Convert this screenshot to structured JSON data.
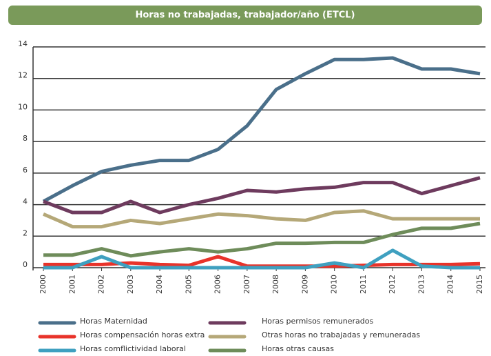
{
  "chart_data": {
    "type": "line",
    "title": "Horas no trabajadas, trabajador/año (ETCL)",
    "categories": [
      "2000",
      "2001",
      "2002",
      "2003",
      "2004",
      "2005",
      "2006",
      "2007",
      "2008",
      "2009",
      "2010",
      "2011",
      "2012",
      "2013",
      "2014",
      "2015"
    ],
    "ylim": [
      0,
      14
    ],
    "yticks": [
      0,
      2,
      4,
      6,
      8,
      10,
      12,
      14
    ],
    "grid": true,
    "legend": "bottom",
    "series": [
      {
        "name": "Horas Maternidad",
        "color": "#4a6f8a",
        "values": [
          4.2,
          5.2,
          6.1,
          6.5,
          6.8,
          6.8,
          7.5,
          9.0,
          11.3,
          12.3,
          13.2,
          13.2,
          13.3,
          12.6,
          12.6,
          12.3
        ]
      },
      {
        "name": "Horas permisos remunerados",
        "color": "#6e3b5e",
        "values": [
          4.2,
          3.5,
          3.5,
          4.2,
          3.5,
          4.0,
          4.4,
          4.9,
          4.8,
          5.0,
          5.1,
          5.4,
          5.4,
          4.7,
          5.2,
          5.7
        ]
      },
      {
        "name": "Horas compensación horas extra",
        "color": "#e8332a",
        "values": [
          0.2,
          0.2,
          0.2,
          0.3,
          0.2,
          0.15,
          0.7,
          0.1,
          0.1,
          0.1,
          0.1,
          0.15,
          0.2,
          0.2,
          0.2,
          0.25
        ]
      },
      {
        "name": "Otras horas no trabajadas y remuneradas",
        "color": "#b5a878",
        "values": [
          3.4,
          2.6,
          2.6,
          3.0,
          2.8,
          3.1,
          3.4,
          3.3,
          3.1,
          3.0,
          3.5,
          3.6,
          3.1,
          3.1,
          3.1,
          3.1
        ]
      },
      {
        "name": "Horas comflictividad laboral",
        "color": "#3fa0c0",
        "values": [
          0,
          0,
          0.7,
          0,
          0,
          0,
          0,
          0,
          0,
          0,
          0.3,
          0,
          1.1,
          0.1,
          0,
          0
        ]
      },
      {
        "name": "Horas otras causas",
        "color": "#6e8c5a",
        "values": [
          0.8,
          0.8,
          1.2,
          0.75,
          1.0,
          1.2,
          1.0,
          1.2,
          1.55,
          1.55,
          1.6,
          1.6,
          2.1,
          2.5,
          2.5,
          2.8
        ]
      }
    ]
  }
}
